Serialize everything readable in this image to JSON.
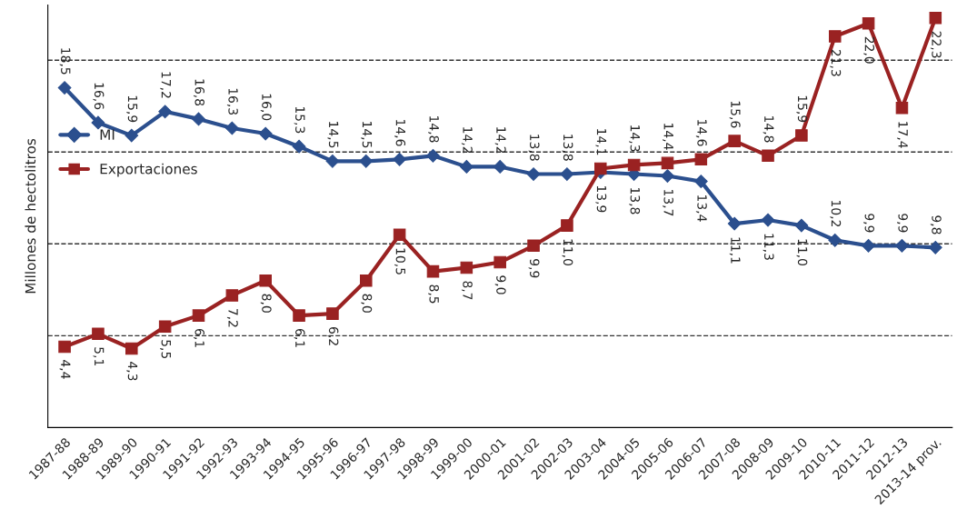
{
  "chart_data": {
    "type": "line",
    "ylabel": "Millones de hectolitros",
    "categories": [
      "1987-88",
      "1988-89",
      "1989-90",
      "1990-91",
      "1991-92",
      "1992-93",
      "1993-94",
      "1994-95",
      "1995-96",
      "1996-97",
      "1997-98",
      "1998-99",
      "1999-00",
      "2000-01",
      "2001-02",
      "2002-03",
      "2003-04",
      "2004-05",
      "2005-06",
      "2006-07",
      "2007-08",
      "2008-09",
      "2009-10",
      "2010-11",
      "2011-12",
      "2012-13",
      "2013-14 prov."
    ],
    "series": [
      {
        "name": "MI",
        "color": "#2b4f8e",
        "marker": "diamond",
        "values": [
          18.5,
          16.6,
          15.9,
          17.2,
          16.8,
          16.3,
          16.0,
          15.3,
          14.5,
          14.5,
          14.6,
          14.8,
          14.2,
          14.2,
          13.8,
          13.8,
          13.9,
          13.8,
          13.7,
          13.4,
          11.1,
          11.3,
          11.0,
          10.2,
          9.9,
          9.9,
          9.8
        ],
        "value_labels": [
          "18,5",
          "16,6",
          "15,9",
          "17,2",
          "16,8",
          "16,3",
          "16,0",
          "15,3",
          "14,5",
          "14,5",
          "14,6",
          "14,8",
          "14,2",
          "14,2",
          "13,8",
          "13,8",
          "13,9",
          "13,8",
          "13,7",
          "13,4",
          "11,1",
          "11,3",
          "11,0",
          "10,2",
          "9,9",
          "9,9",
          "9,8"
        ]
      },
      {
        "name": "Exportaciones",
        "color": "#9a2222",
        "marker": "square",
        "values": [
          4.4,
          5.1,
          4.3,
          5.5,
          6.1,
          7.2,
          8.0,
          6.1,
          6.2,
          8.0,
          10.5,
          8.5,
          8.7,
          9.0,
          9.9,
          11.0,
          14.1,
          14.3,
          14.4,
          14.6,
          15.6,
          14.8,
          15.9,
          21.3,
          22.0,
          17.4,
          22.3
        ],
        "value_labels": [
          "4,4",
          "5,1",
          "4,3",
          "5,5",
          "6,1",
          "7,2",
          "8,0",
          "6,1",
          "6,2",
          "8,0",
          "10,5",
          "8,5",
          "8,7",
          "9,0",
          "9,9",
          "11,0",
          "14,1",
          "14,3",
          "14,4",
          "14,6",
          "15,6",
          "14,8",
          "15,9",
          "21,3",
          "22,0",
          "17,4",
          "22,3"
        ]
      }
    ],
    "ylim": [
      0,
      23
    ],
    "yticks": [
      {
        "value": 5,
        "label": null
      },
      {
        "value": 10,
        "label": null
      },
      {
        "value": 15,
        "label": null
      },
      {
        "value": 20,
        "label": null
      }
    ],
    "grid": "y",
    "legend": "center left",
    "line_style": "solid"
  }
}
